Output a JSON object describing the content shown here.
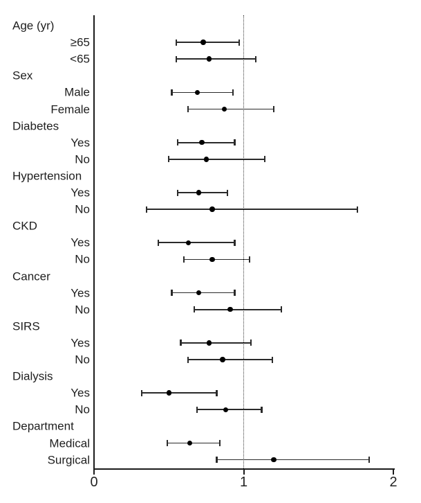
{
  "chart_data": {
    "type": "scatter",
    "subtype": "forest-plot",
    "title": "",
    "xlabel": "",
    "ylabel": "",
    "grid": false,
    "legend": "none",
    "colors": {
      "marker": "#000000",
      "line": "#2a2a2a",
      "axis": "#1b1b1b",
      "text": "#1e1e1e",
      "background": "#ffffff"
    },
    "x_axis": {
      "min": 0,
      "max": 2,
      "tick_values": [
        0,
        1,
        2
      ],
      "tick_labels": [
        "0",
        "1",
        "2"
      ],
      "reference_line": 1
    },
    "groups": [
      {
        "label": "Age (yr)",
        "items": [
          {
            "label": "≥65",
            "estimate": 0.73,
            "ci_low": 0.55,
            "ci_high": 0.97
          },
          {
            "label": "<65",
            "estimate": 0.77,
            "ci_low": 0.55,
            "ci_high": 1.08
          }
        ]
      },
      {
        "label": "Sex",
        "items": [
          {
            "label": "Male",
            "estimate": 0.69,
            "ci_low": 0.52,
            "ci_high": 0.93
          },
          {
            "label": "Female",
            "estimate": 0.87,
            "ci_low": 0.63,
            "ci_high": 1.2
          }
        ]
      },
      {
        "label": "Diabetes",
        "items": [
          {
            "label": "Yes",
            "estimate": 0.72,
            "ci_low": 0.56,
            "ci_high": 0.94
          },
          {
            "label": "No",
            "estimate": 0.75,
            "ci_low": 0.5,
            "ci_high": 1.14
          }
        ]
      },
      {
        "label": "Hypertension",
        "items": [
          {
            "label": "Yes",
            "estimate": 0.7,
            "ci_low": 0.56,
            "ci_high": 0.89
          },
          {
            "label": "No",
            "estimate": 0.79,
            "ci_low": 0.35,
            "ci_high": 1.76
          }
        ]
      },
      {
        "label": "CKD",
        "items": [
          {
            "label": "Yes",
            "estimate": 0.63,
            "ci_low": 0.43,
            "ci_high": 0.94
          },
          {
            "label": "No",
            "estimate": 0.79,
            "ci_low": 0.6,
            "ci_high": 1.04
          }
        ]
      },
      {
        "label": "Cancer",
        "items": [
          {
            "label": "Yes",
            "estimate": 0.7,
            "ci_low": 0.52,
            "ci_high": 0.94
          },
          {
            "label": "No",
            "estimate": 0.91,
            "ci_low": 0.67,
            "ci_high": 1.25
          }
        ]
      },
      {
        "label": "SIRS",
        "items": [
          {
            "label": "Yes",
            "estimate": 0.77,
            "ci_low": 0.58,
            "ci_high": 1.05
          },
          {
            "label": "No",
            "estimate": 0.86,
            "ci_low": 0.63,
            "ci_high": 1.19
          }
        ]
      },
      {
        "label": "Dialysis",
        "items": [
          {
            "label": "Yes",
            "estimate": 0.5,
            "ci_low": 0.32,
            "ci_high": 0.82
          },
          {
            "label": "No",
            "estimate": 0.88,
            "ci_low": 0.69,
            "ci_high": 1.12
          }
        ]
      },
      {
        "label": "Department",
        "items": [
          {
            "label": "Medical",
            "estimate": 0.64,
            "ci_low": 0.49,
            "ci_high": 0.84
          },
          {
            "label": "Surgical",
            "estimate": 1.2,
            "ci_low": 0.82,
            "ci_high": 1.84
          }
        ]
      }
    ]
  }
}
